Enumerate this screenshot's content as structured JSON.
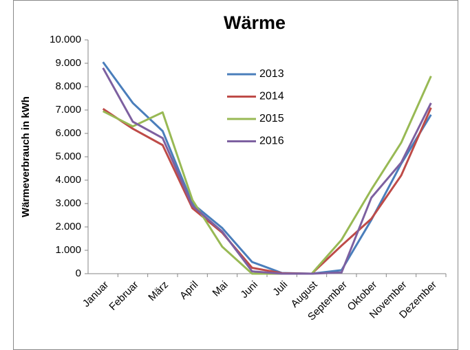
{
  "chart_data": {
    "type": "line",
    "title": "Wärme",
    "y_label": "Wärmeverbrauch in kWh",
    "categories": [
      "Januar",
      "Februar",
      "März",
      "April",
      "Mai",
      "Juni",
      "Juli",
      "August",
      "September",
      "Oktober",
      "November",
      "Dezember"
    ],
    "series": [
      {
        "name": "2013",
        "color": "#4a7ebb",
        "values": [
          9050,
          7300,
          6100,
          3000,
          1950,
          500,
          30,
          0,
          150,
          2300,
          4700,
          6800
        ]
      },
      {
        "name": "2014",
        "color": "#be4b48",
        "values": [
          7050,
          6200,
          5500,
          2800,
          1750,
          250,
          20,
          0,
          1200,
          2350,
          4200,
          7100
        ]
      },
      {
        "name": "2015",
        "color": "#98b954",
        "values": [
          6950,
          6300,
          6900,
          3150,
          1150,
          0,
          0,
          0,
          1450,
          3600,
          5600,
          8450
        ]
      },
      {
        "name": "2016",
        "color": "#7d60a0",
        "values": [
          8800,
          6500,
          5800,
          2900,
          1800,
          100,
          0,
          0,
          50,
          3250,
          4750,
          7300
        ]
      }
    ],
    "ylim": [
      0,
      10000
    ],
    "yticks": [
      0,
      {
        "value": 1000,
        "label": "1.000"
      },
      {
        "value": 2000,
        "label": "2.000"
      },
      {
        "value": 3000,
        "label": "3.000"
      },
      {
        "value": 4000,
        "label": "4.000"
      },
      {
        "value": 5000,
        "label": "5.000"
      },
      {
        "value": 6000,
        "label": "6.000"
      },
      {
        "value": 7000,
        "label": "7.000"
      },
      {
        "value": 8000,
        "label": "8.000"
      },
      {
        "value": 9000,
        "label": "9.000"
      },
      {
        "value": 10000,
        "label": "10.000"
      }
    ],
    "grid": false,
    "legend_position": "top-center"
  }
}
